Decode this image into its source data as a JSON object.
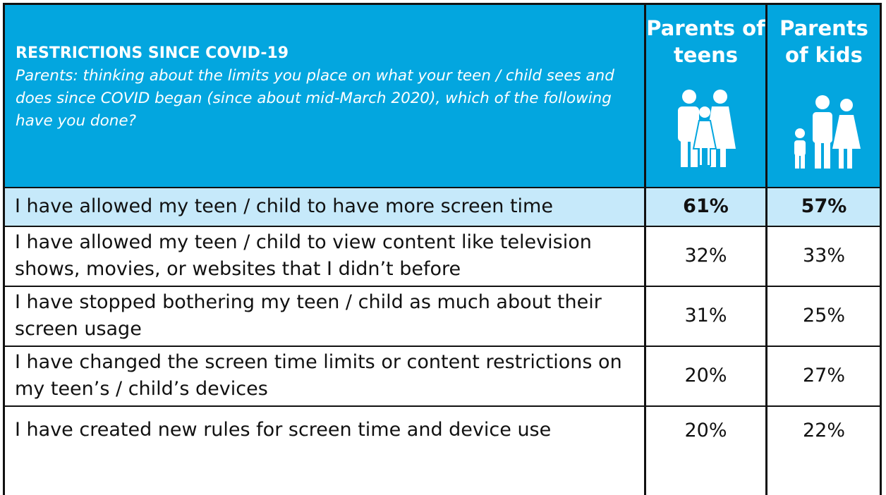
{
  "header": {
    "title": "RESTRICTIONS SINCE COVID-19",
    "subtitle": "Parents: thinking about the limits you place on what your teen / child sees and does since COVID began (since about mid-March 2020), which of the following have you done?",
    "columns": [
      "Parents of teens",
      "Parents of kids"
    ]
  },
  "table": {
    "rows": [
      [
        "I have allowed my teen / child to have more screen time",
        "61%",
        "57%"
      ],
      [
        "I have allowed my teen / child to view content like television shows, movies, or websites that I didn’t before",
        "32%",
        "33%"
      ],
      [
        "I have stopped bothering my teen / child as much about their screen usage",
        "31%",
        "25%"
      ],
      [
        "I have changed the screen time limits or content restrictions on my teen’s / child’s devices",
        "20%",
        "27%"
      ],
      [
        "I have created new rules for screen time and device use",
        "20%",
        "22%"
      ]
    ]
  }
}
